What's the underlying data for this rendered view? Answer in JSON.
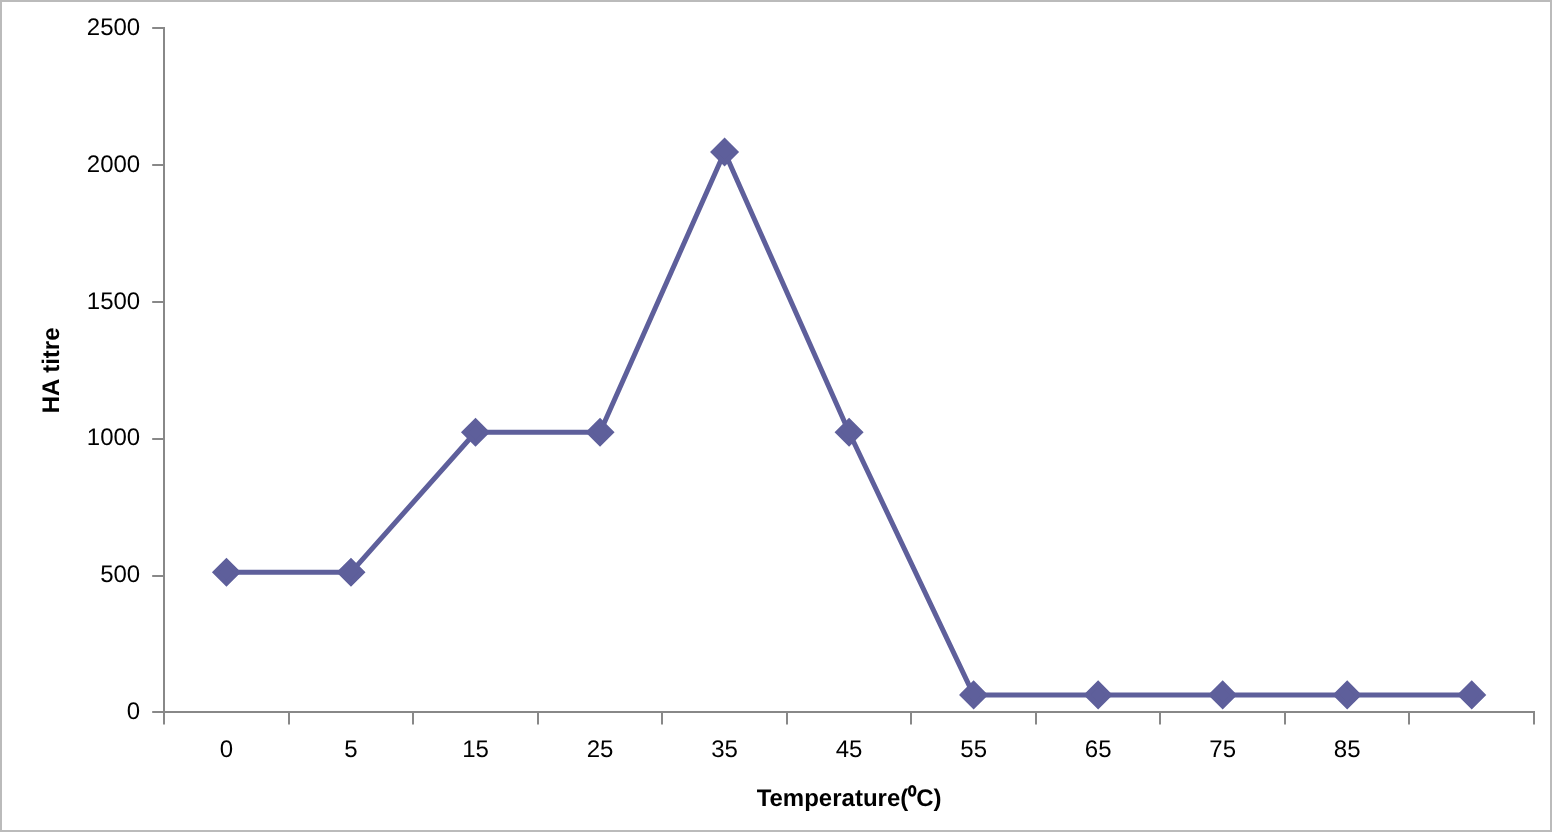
{
  "chart_data": {
    "type": "line",
    "xlabel": "Temperature(⁰C)",
    "ylabel": "HA titre",
    "categories": [
      "0",
      "5",
      "15",
      "25",
      "35",
      "45",
      "55",
      "65",
      "75",
      "85",
      null
    ],
    "series": [
      {
        "color": "#5e5f9b",
        "values": [
          512,
          512,
          1024,
          1024,
          2048,
          1024,
          64,
          64,
          64,
          64,
          64
        ]
      }
    ],
    "ylim": [
      0,
      2500
    ],
    "yticks": [
      0,
      500,
      1000,
      1500,
      2000,
      2500
    ],
    "grid": false,
    "legend": false,
    "marker": "diamond",
    "line_style": "solid"
  }
}
